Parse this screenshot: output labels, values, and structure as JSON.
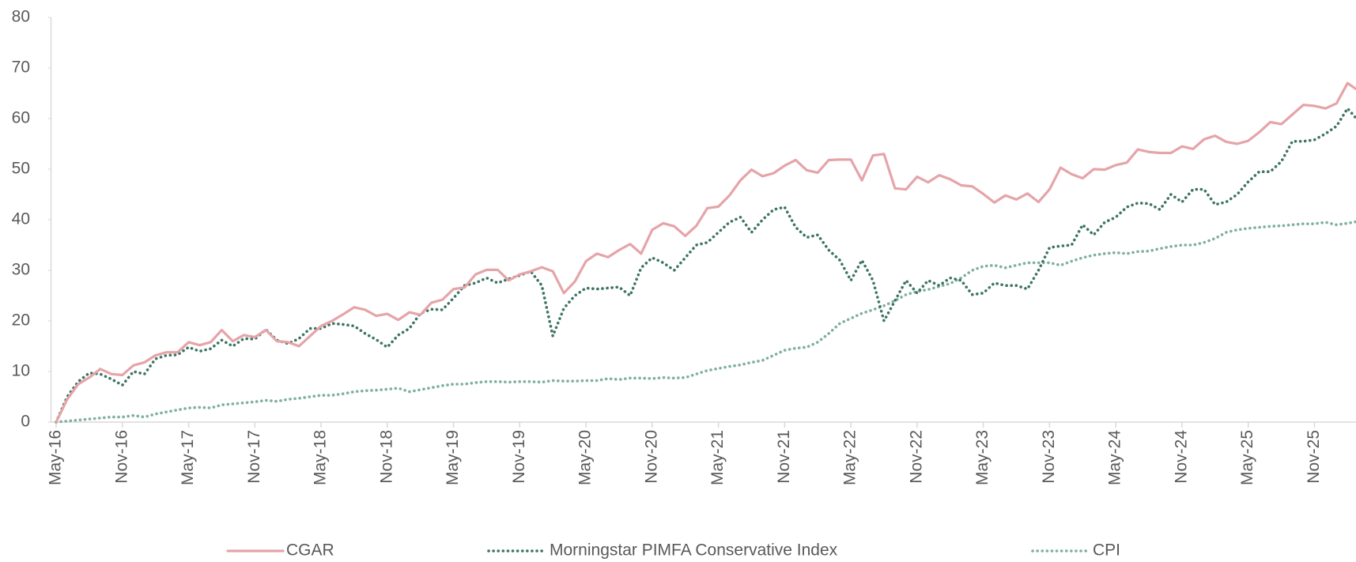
{
  "chart_data": {
    "type": "line",
    "categories": [
      "May-16",
      null,
      null,
      null,
      null,
      null,
      "Nov-16",
      null,
      null,
      null,
      null,
      null,
      "May-17",
      null,
      null,
      null,
      null,
      null,
      "Nov-17",
      null,
      null,
      null,
      null,
      null,
      "May-18",
      null,
      null,
      null,
      null,
      null,
      "Nov-18",
      null,
      null,
      null,
      null,
      null,
      "May-19",
      null,
      null,
      null,
      null,
      null,
      "Nov-19",
      null,
      null,
      null,
      null,
      null,
      "May-20",
      null,
      null,
      null,
      null,
      null,
      "Nov-20",
      null,
      null,
      null,
      null,
      null,
      "May-21",
      null,
      null,
      null,
      null,
      null,
      "Nov-21",
      null,
      null,
      null,
      null,
      null,
      "May-22",
      null,
      null,
      null,
      null,
      null,
      "Nov-22",
      null,
      null,
      null,
      null,
      null,
      "May-23",
      null,
      null,
      null,
      null,
      null,
      "Nov-23",
      null,
      null,
      null,
      null,
      null,
      "May-24",
      null,
      null,
      null,
      null,
      null,
      "Nov-24",
      null,
      null,
      null,
      null,
      null,
      "May-25",
      null,
      null,
      null,
      null,
      null,
      "Nov-25",
      null,
      null,
      null,
      null
    ],
    "series": [
      {
        "name": "CGAR",
        "color": "#e5a4a8",
        "line_style": "solid",
        "values": [
          0,
          4.5,
          7.5,
          8.8,
          10.5,
          9.5,
          9.3,
          11.2,
          11.8,
          13.2,
          13.8,
          13.8,
          15.8,
          15.2,
          15.8,
          18.2,
          16,
          17.2,
          16.8,
          18.2,
          16,
          15.8,
          15,
          17,
          19,
          20,
          21.3,
          22.7,
          22.2,
          21,
          21.4,
          20.2,
          21.7,
          21.2,
          23.6,
          24.2,
          26.3,
          26.6,
          29.2,
          30.1,
          30.1,
          28,
          29.2,
          29.8,
          30.6,
          29.8,
          25.5,
          27.8,
          31.8,
          33.3,
          32.6,
          34,
          35.2,
          33.3,
          38,
          39.3,
          38.7,
          36.8,
          38.8,
          42.3,
          42.6,
          44.8,
          47.8,
          49.9,
          48.6,
          49.2,
          50.7,
          51.8,
          49.8,
          49.3,
          51.8,
          51.9,
          51.9,
          47.8,
          52.7,
          53,
          46.2,
          46,
          48.5,
          47.4,
          48.8,
          48,
          46.8,
          46.6,
          45.1,
          43.4,
          44.8,
          44,
          45.2,
          43.5,
          46,
          50.3,
          49,
          48.2,
          50,
          49.9,
          50.8,
          51.3,
          53.9,
          53.4,
          53.2,
          53.2,
          54.5,
          54,
          55.9,
          56.6,
          55.4,
          55,
          55.6,
          57.3,
          59.3,
          58.9,
          60.8,
          62.7,
          62.5,
          62,
          63,
          67,
          65.5
        ]
      },
      {
        "name": "Morningstar PIMFA Conservative Index",
        "color": "#3e7566",
        "line_style": "dotted",
        "values": [
          0,
          5,
          8,
          9.7,
          9.5,
          8.5,
          7.3,
          10,
          9.5,
          12.5,
          13.2,
          13.3,
          14.8,
          14,
          14.5,
          16.2,
          15,
          16.5,
          16.4,
          18.3,
          16.2,
          15.5,
          16.5,
          18.5,
          18.5,
          19.5,
          19.3,
          19,
          17.5,
          16.3,
          14.8,
          17.2,
          18.5,
          21.5,
          22.3,
          22.2,
          24.5,
          27,
          27.5,
          28.5,
          27.5,
          28.3,
          29,
          29.8,
          27,
          17,
          22.5,
          25,
          26.5,
          26.3,
          26.5,
          26.7,
          25,
          30.5,
          32.5,
          31.5,
          30,
          32.5,
          35,
          35.5,
          37.5,
          39.5,
          40.5,
          37.5,
          40,
          42,
          42.5,
          38.5,
          36.5,
          37,
          34,
          32,
          28,
          32,
          28,
          20,
          24,
          28,
          25.5,
          28,
          27,
          28.5,
          28,
          25.2,
          25.5,
          27.5,
          27,
          27,
          26.3,
          30,
          34.5,
          34.8,
          35,
          39,
          37,
          39.5,
          40.5,
          42.5,
          43.3,
          43.2,
          42,
          45,
          43.5,
          46,
          46,
          43,
          43.5,
          45,
          47.5,
          49.5,
          49.5,
          51.5,
          55.5,
          55.5,
          55.8,
          57,
          58.5,
          62,
          59.5
        ]
      },
      {
        "name": "CPI",
        "color": "#7fb0a0",
        "line_style": "dotted",
        "values": [
          0,
          0.2,
          0.4,
          0.6,
          0.8,
          1,
          1,
          1.3,
          1,
          1.6,
          2,
          2.4,
          2.8,
          2.9,
          2.8,
          3.4,
          3.6,
          3.8,
          4,
          4.3,
          4.1,
          4.5,
          4.7,
          5,
          5.3,
          5.3,
          5.6,
          6,
          6.2,
          6.3,
          6.5,
          6.7,
          6,
          6.4,
          6.8,
          7.2,
          7.5,
          7.5,
          7.8,
          8,
          8,
          7.9,
          8,
          8,
          7.9,
          8.2,
          8.1,
          8.1,
          8.2,
          8.2,
          8.6,
          8.4,
          8.7,
          8.7,
          8.6,
          8.8,
          8.7,
          8.8,
          9.5,
          10.2,
          10.6,
          11,
          11.3,
          11.8,
          12.2,
          13.2,
          14.2,
          14.6,
          14.8,
          15.8,
          17.5,
          19.5,
          20.5,
          21.5,
          22.2,
          23,
          24,
          25.2,
          25.8,
          26.2,
          26.8,
          27.4,
          28.5,
          30,
          30.8,
          31,
          30.5,
          31,
          31.5,
          31.5,
          31.5,
          31,
          31.8,
          32.5,
          33,
          33.3,
          33.5,
          33.3,
          33.7,
          33.8,
          34.3,
          34.7,
          35,
          35,
          35.5,
          36.3,
          37.5,
          38,
          38.3,
          38.5,
          38.7,
          38.8,
          39,
          39.2,
          39.2,
          39.5,
          39,
          39.3,
          39.7
        ]
      }
    ],
    "ylim": [
      0,
      80
    ],
    "yticks": [
      0,
      10,
      20,
      30,
      40,
      50,
      60,
      70,
      80
    ],
    "grid": false,
    "legend": "bottom"
  }
}
